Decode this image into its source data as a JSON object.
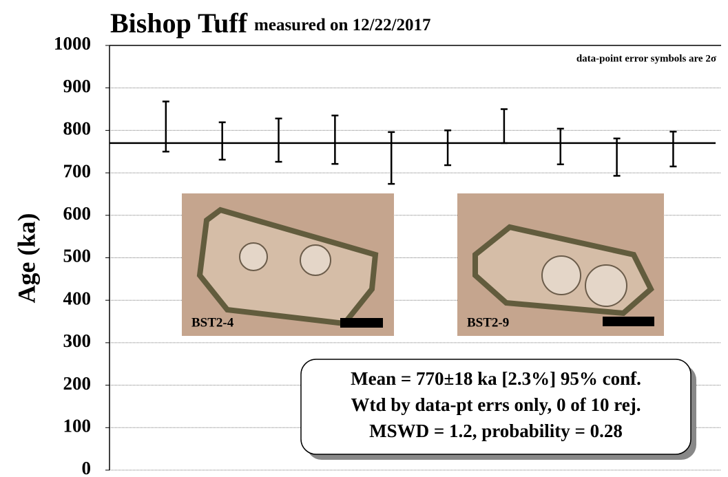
{
  "chart_data": {
    "type": "errorbar",
    "title": "Bishop Tuff",
    "subtitle": "measured on 12/22/2017",
    "ylabel": "Age (ka)",
    "annotation": "data-point error symbols are 2σ",
    "x": [
      1,
      2,
      3,
      4,
      5,
      6,
      7,
      8,
      9,
      10
    ],
    "xlim": [
      0,
      10.85
    ],
    "series": [
      {
        "name": "Bishop Tuff",
        "color": "#000000",
        "values": [
          809,
          775,
          777,
          778,
          735,
          759,
          810,
          762,
          737,
          756
        ],
        "errors": [
          59,
          44,
          51,
          57,
          61,
          41,
          40,
          42,
          44,
          41
        ]
      }
    ],
    "mean_line": 770,
    "ylim": [
      0,
      1000
    ],
    "yticks": [
      0,
      100,
      200,
      300,
      400,
      500,
      600,
      700,
      800,
      900,
      1000
    ],
    "grid": true,
    "images": [
      {
        "label": "BST2-4"
      },
      {
        "label": "BST2-9"
      }
    ],
    "stats_box": [
      "Mean = 770±18 ka [2.3%]  95% conf.",
      "Wtd by data-pt errs only, 0 of 10 rej.",
      "MSWD = 1.2, probability = 0.28"
    ]
  }
}
